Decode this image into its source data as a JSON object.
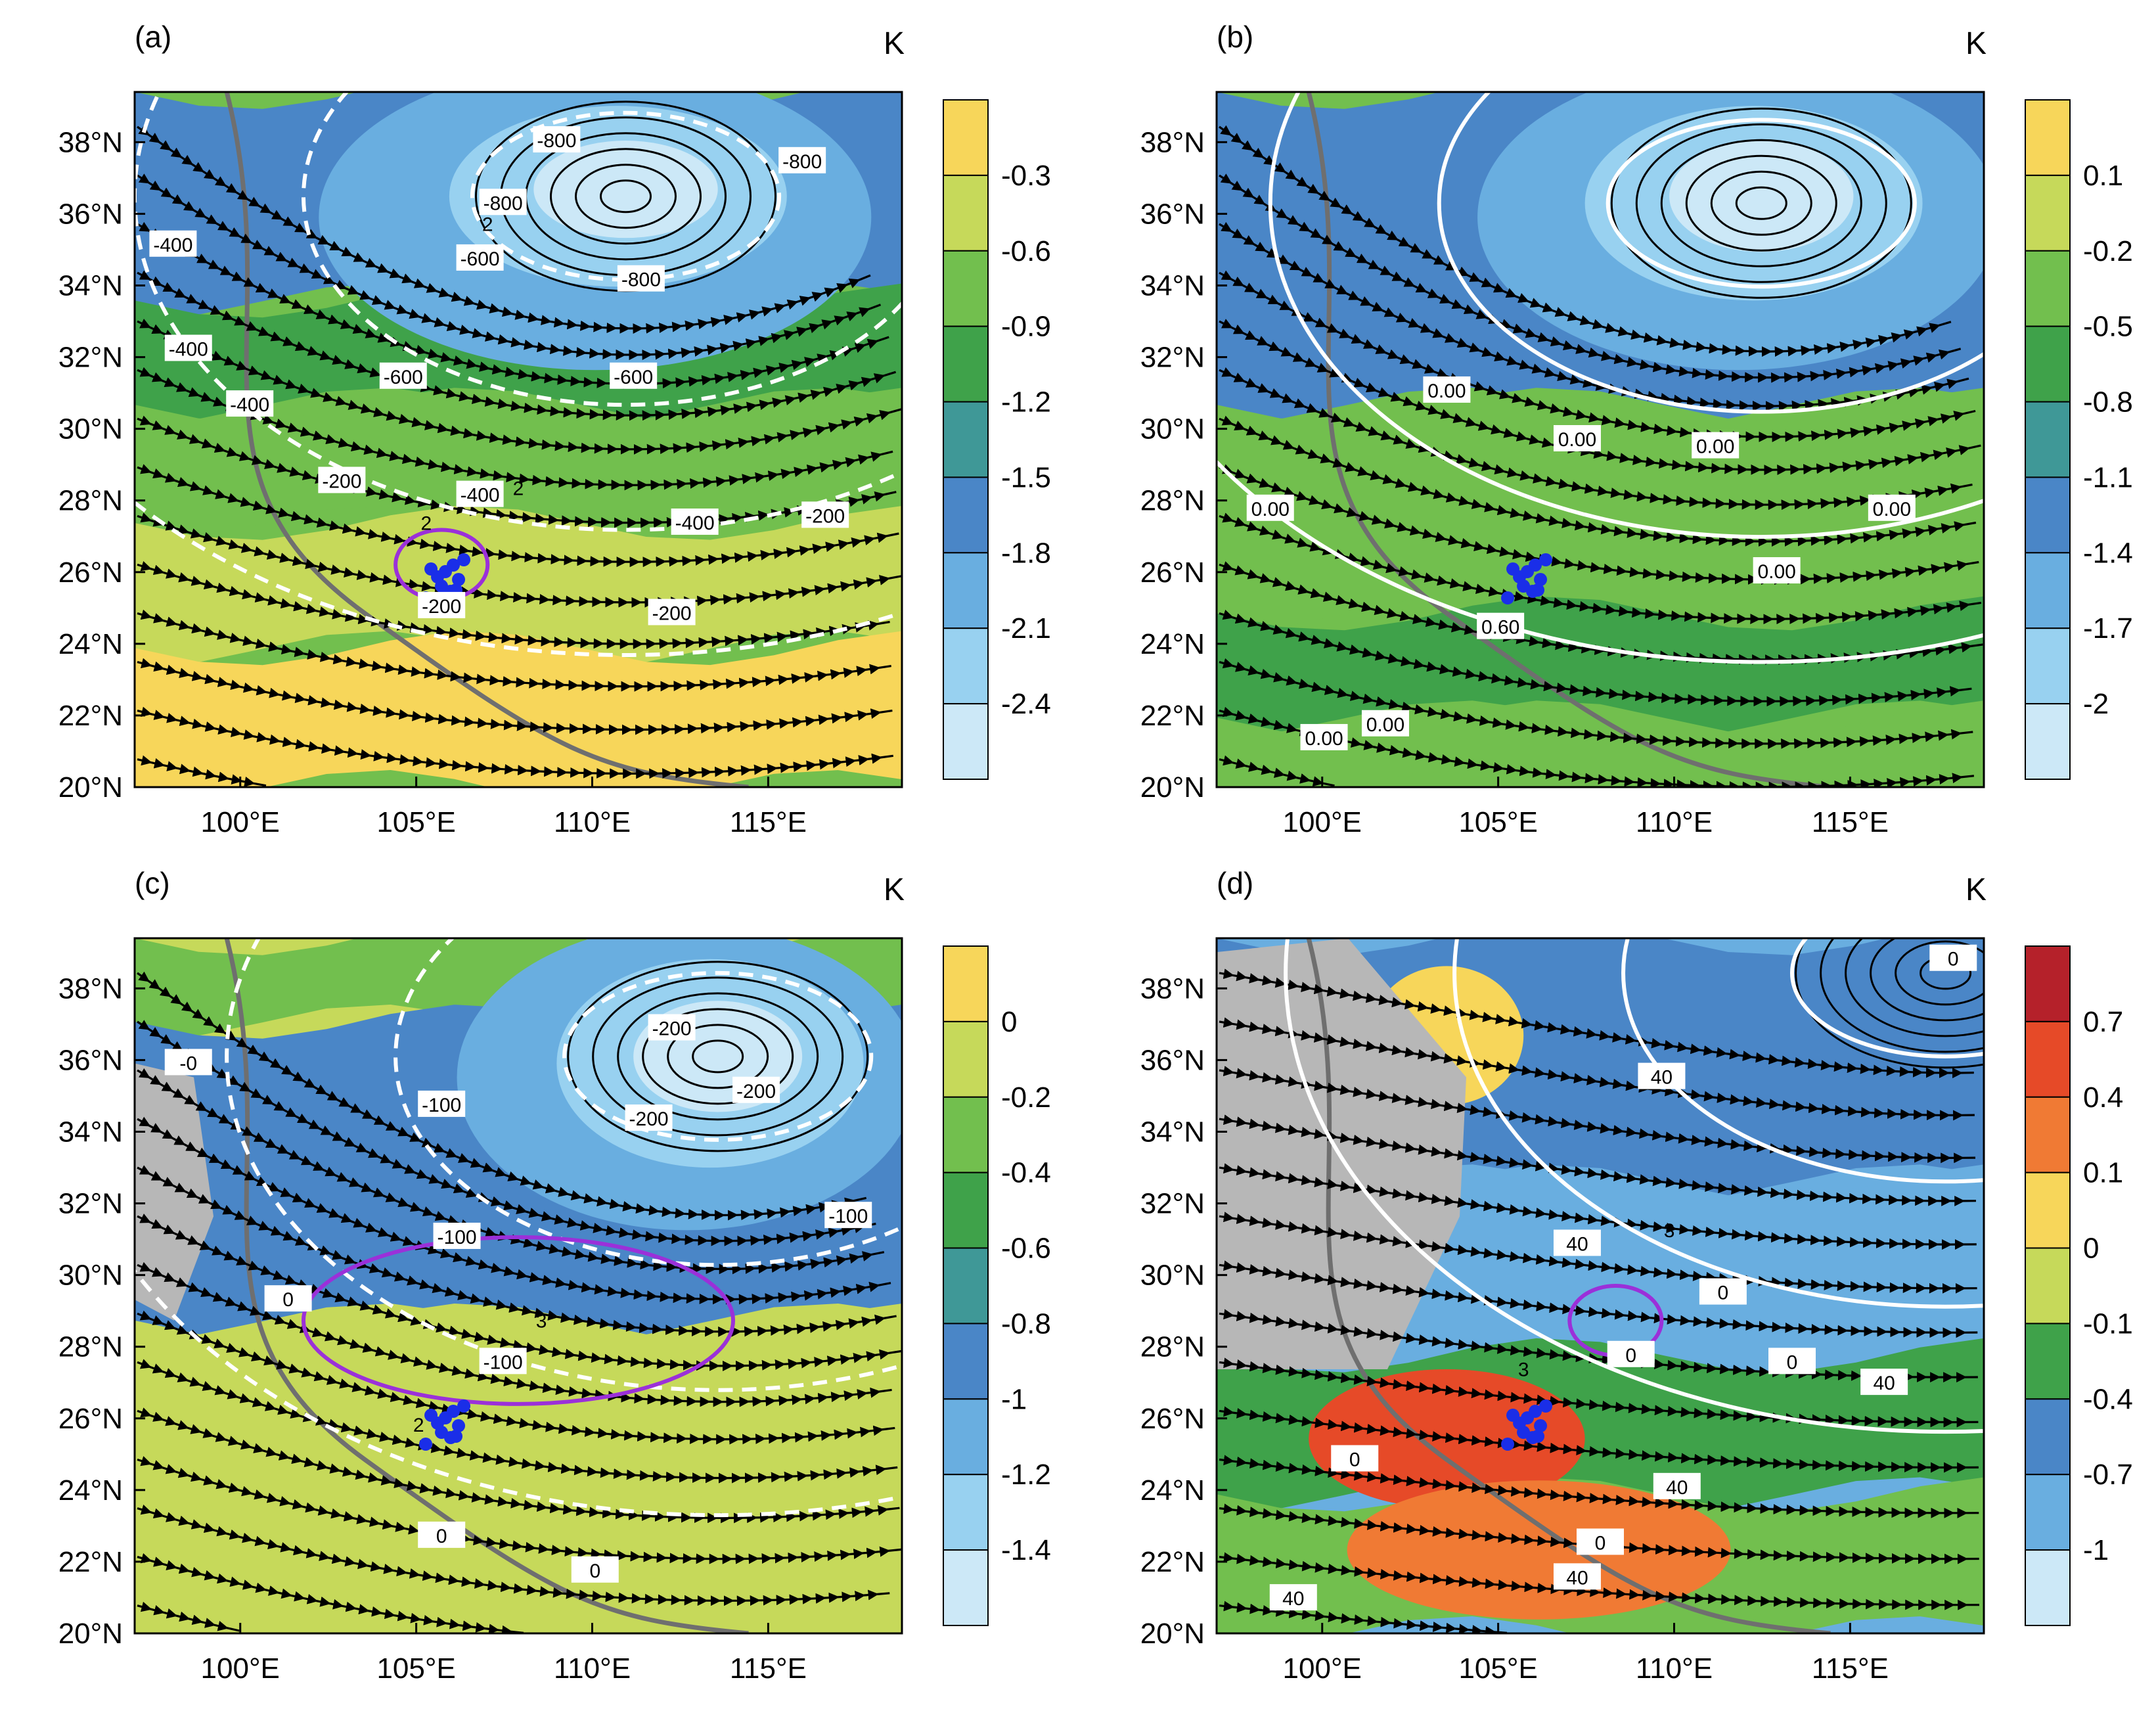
{
  "colors": {
    "yellow": "#f7d65a",
    "yellow_green": "#c6d95a",
    "green": "#72bf4e",
    "dark_green": "#3fa24a",
    "teal": "#3f9897",
    "blue": "#4a86c7",
    "mid_blue": "#69aee0",
    "light_blue": "#98d1f0",
    "pale_blue": "#cce8f7",
    "orange": "#f07a34",
    "red_orange": "#e64a28",
    "dark_red": "#b5212a",
    "gray_mask": "#b7b7b7",
    "topography": "#6f6f6f",
    "streamline": "#000000",
    "white_contour": "#ffffff",
    "purple_contour": "#9b30d9",
    "station_dots": "#1a2ee8"
  },
  "icons": [
    "streamline-arrow",
    "station-dot"
  ],
  "panels": [
    {
      "label": "(a)",
      "unit": "K",
      "x_ticks": [
        "100°E",
        "105°E",
        "110°E",
        "115°E"
      ],
      "y_ticks": [
        "38°N",
        "36°N",
        "34°N",
        "32°N",
        "30°N",
        "28°N",
        "26°N",
        "24°N",
        "22°N",
        "20°N"
      ],
      "colorbar": {
        "labels": [
          "-0.3",
          "-0.6",
          "-0.9",
          "-1.2",
          "-1.5",
          "-1.8",
          "-2.1",
          "-2.4"
        ],
        "colors": [
          "#f7d65a",
          "#c6d95a",
          "#72bf4e",
          "#3fa24a",
          "#3f9897",
          "#4a86c7",
          "#69aee0",
          "#98d1f0",
          "#cce8f7"
        ]
      },
      "contour_labels": [
        "-800",
        "-800",
        "-800",
        "-800",
        "-600",
        "-600",
        "-600",
        "-400",
        "-400",
        "-400",
        "-400",
        "-400",
        "-200",
        "-200",
        "-200",
        "-200"
      ],
      "purple_labels": [
        "2",
        "2",
        "2"
      ]
    },
    {
      "label": "(b)",
      "unit": "K",
      "x_ticks": [
        "100°E",
        "105°E",
        "110°E",
        "115°E"
      ],
      "y_ticks": [
        "38°N",
        "36°N",
        "34°N",
        "32°N",
        "30°N",
        "28°N",
        "26°N",
        "24°N",
        "22°N",
        "20°N"
      ],
      "colorbar": {
        "labels": [
          "0.1",
          "-0.2",
          "-0.5",
          "-0.8",
          "-1.1",
          "-1.4",
          "-1.7",
          "-2"
        ],
        "colors": [
          "#f7d65a",
          "#c6d95a",
          "#72bf4e",
          "#3fa24a",
          "#3f9897",
          "#4a86c7",
          "#69aee0",
          "#98d1f0",
          "#cce8f7"
        ]
      },
      "contour_labels": [
        "0.00",
        "0.00",
        "0.00",
        "0.00",
        "0.00",
        "0.00",
        "0.00",
        "0.00",
        "0.60"
      ]
    },
    {
      "label": "(c)",
      "unit": "K",
      "x_ticks": [
        "100°E",
        "105°E",
        "110°E",
        "115°E"
      ],
      "y_ticks": [
        "38°N",
        "36°N",
        "34°N",
        "32°N",
        "30°N",
        "28°N",
        "26°N",
        "24°N",
        "22°N",
        "20°N"
      ],
      "colorbar": {
        "labels": [
          "0",
          "-0.2",
          "-0.4",
          "-0.6",
          "-0.8",
          "-1",
          "-1.2",
          "-1.4"
        ],
        "colors": [
          "#f7d65a",
          "#c6d95a",
          "#72bf4e",
          "#3fa24a",
          "#3f9897",
          "#4a86c7",
          "#69aee0",
          "#98d1f0",
          "#cce8f7"
        ]
      },
      "contour_labels": [
        "-200",
        "-200",
        "-200",
        "-100",
        "-100",
        "-100",
        "-100",
        "0",
        "0",
        "0",
        "-0"
      ],
      "purple_labels": [
        "3",
        "2"
      ]
    },
    {
      "label": "(d)",
      "unit": "K",
      "x_ticks": [
        "100°E",
        "105°E",
        "110°E",
        "115°E"
      ],
      "y_ticks": [
        "38°N",
        "36°N",
        "34°N",
        "32°N",
        "30°N",
        "28°N",
        "26°N",
        "24°N",
        "22°N",
        "20°N"
      ],
      "colorbar": {
        "labels": [
          "0.7",
          "0.4",
          "0.1",
          "0",
          "-0.1",
          "-0.4",
          "-0.7",
          "-1"
        ],
        "colors": [
          "#b5212a",
          "#e64a28",
          "#f07a34",
          "#f7d65a",
          "#c6d95a",
          "#3fa24a",
          "#4a86c7",
          "#69aee0",
          "#cce8f7"
        ]
      },
      "contour_labels": [
        "0",
        "40",
        "40",
        "0",
        "0",
        "0",
        "0",
        "0",
        "40",
        "40",
        "40",
        "40"
      ],
      "purple_labels": [
        "3",
        "3"
      ]
    }
  ]
}
